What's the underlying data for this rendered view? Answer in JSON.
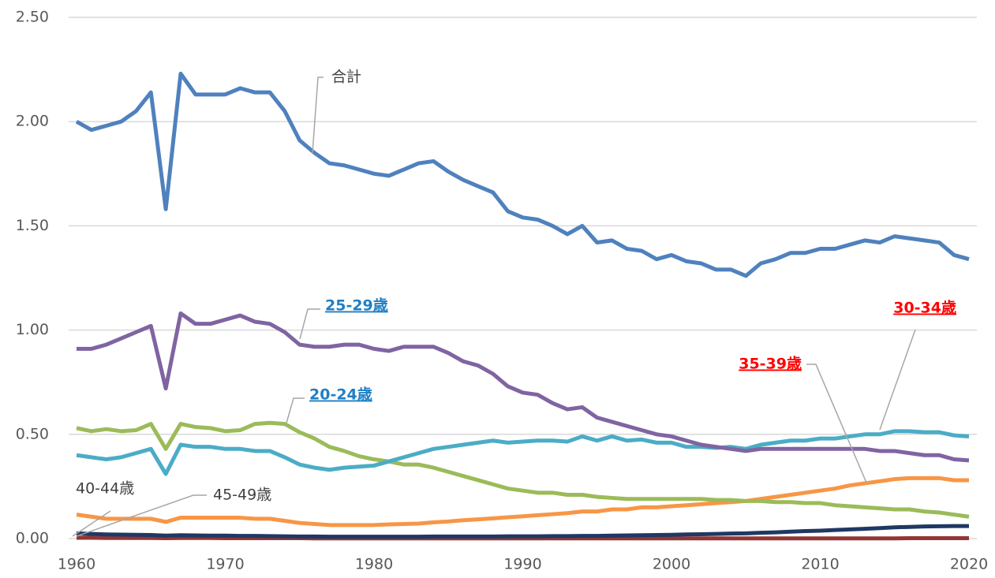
{
  "chart_data": {
    "type": "line",
    "x": [
      1960,
      1961,
      1962,
      1963,
      1964,
      1965,
      1966,
      1967,
      1968,
      1969,
      1970,
      1971,
      1972,
      1973,
      1974,
      1975,
      1976,
      1977,
      1978,
      1979,
      1980,
      1981,
      1982,
      1983,
      1984,
      1985,
      1986,
      1987,
      1988,
      1989,
      1990,
      1991,
      1992,
      1993,
      1994,
      1995,
      1996,
      1997,
      1998,
      1999,
      2000,
      2001,
      2002,
      2003,
      2004,
      2005,
      2006,
      2007,
      2008,
      2009,
      2010,
      2011,
      2012,
      2013,
      2014,
      2015,
      2016,
      2017,
      2018,
      2019,
      2020
    ],
    "xlim": [
      1960,
      2020
    ],
    "xticks": [
      1960,
      1970,
      1980,
      1990,
      2000,
      2010,
      2020
    ],
    "ylim": [
      0,
      2.5
    ],
    "yticks": [
      {
        "value": 0,
        "label": "0.00"
      },
      {
        "value": 0.5,
        "label": "0.50"
      },
      {
        "value": 1,
        "label": "1.00"
      },
      {
        "value": 1.5,
        "label": "1.50"
      },
      {
        "value": 2,
        "label": "2.00"
      },
      {
        "value": 2.5,
        "label": "2.50"
      }
    ],
    "grid": true,
    "series": [
      {
        "name": "合計",
        "color": "#4f81bd",
        "label_color": "#404040",
        "values": [
          2.0,
          1.96,
          1.98,
          2.0,
          2.05,
          2.14,
          1.58,
          2.23,
          2.13,
          2.13,
          2.13,
          2.16,
          2.14,
          2.14,
          2.05,
          1.91,
          1.85,
          1.8,
          1.79,
          1.77,
          1.75,
          1.74,
          1.77,
          1.8,
          1.81,
          1.76,
          1.72,
          1.69,
          1.66,
          1.57,
          1.54,
          1.53,
          1.5,
          1.46,
          1.5,
          1.42,
          1.43,
          1.39,
          1.38,
          1.34,
          1.36,
          1.33,
          1.32,
          1.29,
          1.29,
          1.26,
          1.32,
          1.34,
          1.37,
          1.37,
          1.39,
          1.39,
          1.41,
          1.43,
          1.42,
          1.45,
          1.44,
          1.43,
          1.42,
          1.36,
          1.34
        ]
      },
      {
        "name": "25-29歳",
        "color": "#8064a2",
        "label_color": "#1f7fc4",
        "values": [
          0.91,
          0.91,
          0.93,
          0.96,
          0.99,
          1.02,
          0.72,
          1.08,
          1.03,
          1.03,
          1.05,
          1.07,
          1.04,
          1.03,
          0.99,
          0.93,
          0.92,
          0.92,
          0.93,
          0.93,
          0.91,
          0.9,
          0.92,
          0.92,
          0.92,
          0.89,
          0.85,
          0.83,
          0.79,
          0.73,
          0.7,
          0.69,
          0.65,
          0.62,
          0.63,
          0.58,
          0.56,
          0.54,
          0.52,
          0.5,
          0.49,
          0.47,
          0.45,
          0.44,
          0.43,
          0.42,
          0.43,
          0.43,
          0.43,
          0.43,
          0.43,
          0.43,
          0.43,
          0.43,
          0.42,
          0.42,
          0.41,
          0.4,
          0.4,
          0.38,
          0.375
        ]
      },
      {
        "name": "20-24歳",
        "color": "#9bbb59",
        "label_color": "#1f7fc4",
        "values": [
          0.53,
          0.515,
          0.525,
          0.515,
          0.52,
          0.55,
          0.43,
          0.55,
          0.535,
          0.53,
          0.515,
          0.52,
          0.55,
          0.555,
          0.55,
          0.51,
          0.48,
          0.44,
          0.42,
          0.395,
          0.38,
          0.37,
          0.355,
          0.355,
          0.34,
          0.32,
          0.3,
          0.28,
          0.26,
          0.24,
          0.23,
          0.22,
          0.22,
          0.21,
          0.21,
          0.2,
          0.195,
          0.19,
          0.19,
          0.19,
          0.19,
          0.19,
          0.19,
          0.185,
          0.185,
          0.18,
          0.18,
          0.175,
          0.175,
          0.17,
          0.17,
          0.16,
          0.155,
          0.15,
          0.145,
          0.14,
          0.14,
          0.13,
          0.125,
          0.115,
          0.105
        ]
      },
      {
        "name": "30-34歳",
        "color": "#4bacc6",
        "label_color": "#ff0000",
        "values": [
          0.4,
          0.39,
          0.38,
          0.39,
          0.41,
          0.43,
          0.31,
          0.45,
          0.44,
          0.44,
          0.43,
          0.43,
          0.42,
          0.42,
          0.39,
          0.355,
          0.34,
          0.33,
          0.34,
          0.345,
          0.35,
          0.37,
          0.39,
          0.41,
          0.43,
          0.44,
          0.45,
          0.46,
          0.47,
          0.46,
          0.465,
          0.47,
          0.47,
          0.465,
          0.49,
          0.47,
          0.49,
          0.47,
          0.475,
          0.46,
          0.46,
          0.44,
          0.44,
          0.435,
          0.44,
          0.43,
          0.45,
          0.46,
          0.47,
          0.47,
          0.48,
          0.48,
          0.49,
          0.5,
          0.5,
          0.515,
          0.515,
          0.51,
          0.51,
          0.495,
          0.49
        ]
      },
      {
        "name": "35-39歳",
        "color": "#f79646",
        "label_color": "#ff0000",
        "values": [
          0.115,
          0.105,
          0.095,
          0.095,
          0.095,
          0.095,
          0.08,
          0.1,
          0.1,
          0.1,
          0.1,
          0.1,
          0.095,
          0.095,
          0.085,
          0.075,
          0.07,
          0.065,
          0.065,
          0.065,
          0.065,
          0.068,
          0.07,
          0.072,
          0.078,
          0.082,
          0.088,
          0.092,
          0.097,
          0.102,
          0.107,
          0.112,
          0.117,
          0.122,
          0.13,
          0.13,
          0.14,
          0.14,
          0.15,
          0.15,
          0.155,
          0.16,
          0.165,
          0.17,
          0.175,
          0.18,
          0.19,
          0.2,
          0.21,
          0.22,
          0.23,
          0.24,
          0.255,
          0.265,
          0.275,
          0.285,
          0.29,
          0.29,
          0.29,
          0.28,
          0.28
        ]
      },
      {
        "name": "40-44歳",
        "color": "#1f3864",
        "label_color": "#404040",
        "values": [
          0.025,
          0.022,
          0.02,
          0.019,
          0.018,
          0.017,
          0.014,
          0.016,
          0.015,
          0.014,
          0.014,
          0.013,
          0.013,
          0.012,
          0.011,
          0.01,
          0.01,
          0.009,
          0.009,
          0.009,
          0.009,
          0.009,
          0.009,
          0.009,
          0.01,
          0.01,
          0.01,
          0.01,
          0.01,
          0.011,
          0.011,
          0.011,
          0.012,
          0.012,
          0.013,
          0.013,
          0.014,
          0.015,
          0.016,
          0.017,
          0.018,
          0.02,
          0.021,
          0.022,
          0.024,
          0.025,
          0.028,
          0.03,
          0.033,
          0.036,
          0.038,
          0.041,
          0.044,
          0.047,
          0.05,
          0.054,
          0.056,
          0.058,
          0.059,
          0.06,
          0.06
        ]
      },
      {
        "name": "45-49歳",
        "color": "#943634",
        "label_color": "#404040",
        "values": [
          0.004,
          0.004,
          0.003,
          0.003,
          0.003,
          0.003,
          0.002,
          0.003,
          0.003,
          0.003,
          0.002,
          0.002,
          0.002,
          0.002,
          0.002,
          0.002,
          0.001,
          0.001,
          0.001,
          0.001,
          0.001,
          0.001,
          0.001,
          0.001,
          0.001,
          0.001,
          0.001,
          0.001,
          0.001,
          0.001,
          0.001,
          0.001,
          0.001,
          0.001,
          0.001,
          0.001,
          0.001,
          0.001,
          0.001,
          0.001,
          0.001,
          0.001,
          0.001,
          0.001,
          0.001,
          0.001,
          0.001,
          0.001,
          0.001,
          0.001,
          0.001,
          0.001,
          0.001,
          0.001,
          0.001,
          0.001,
          0.002,
          0.002,
          0.002,
          0.002,
          0.002
        ]
      }
    ]
  }
}
